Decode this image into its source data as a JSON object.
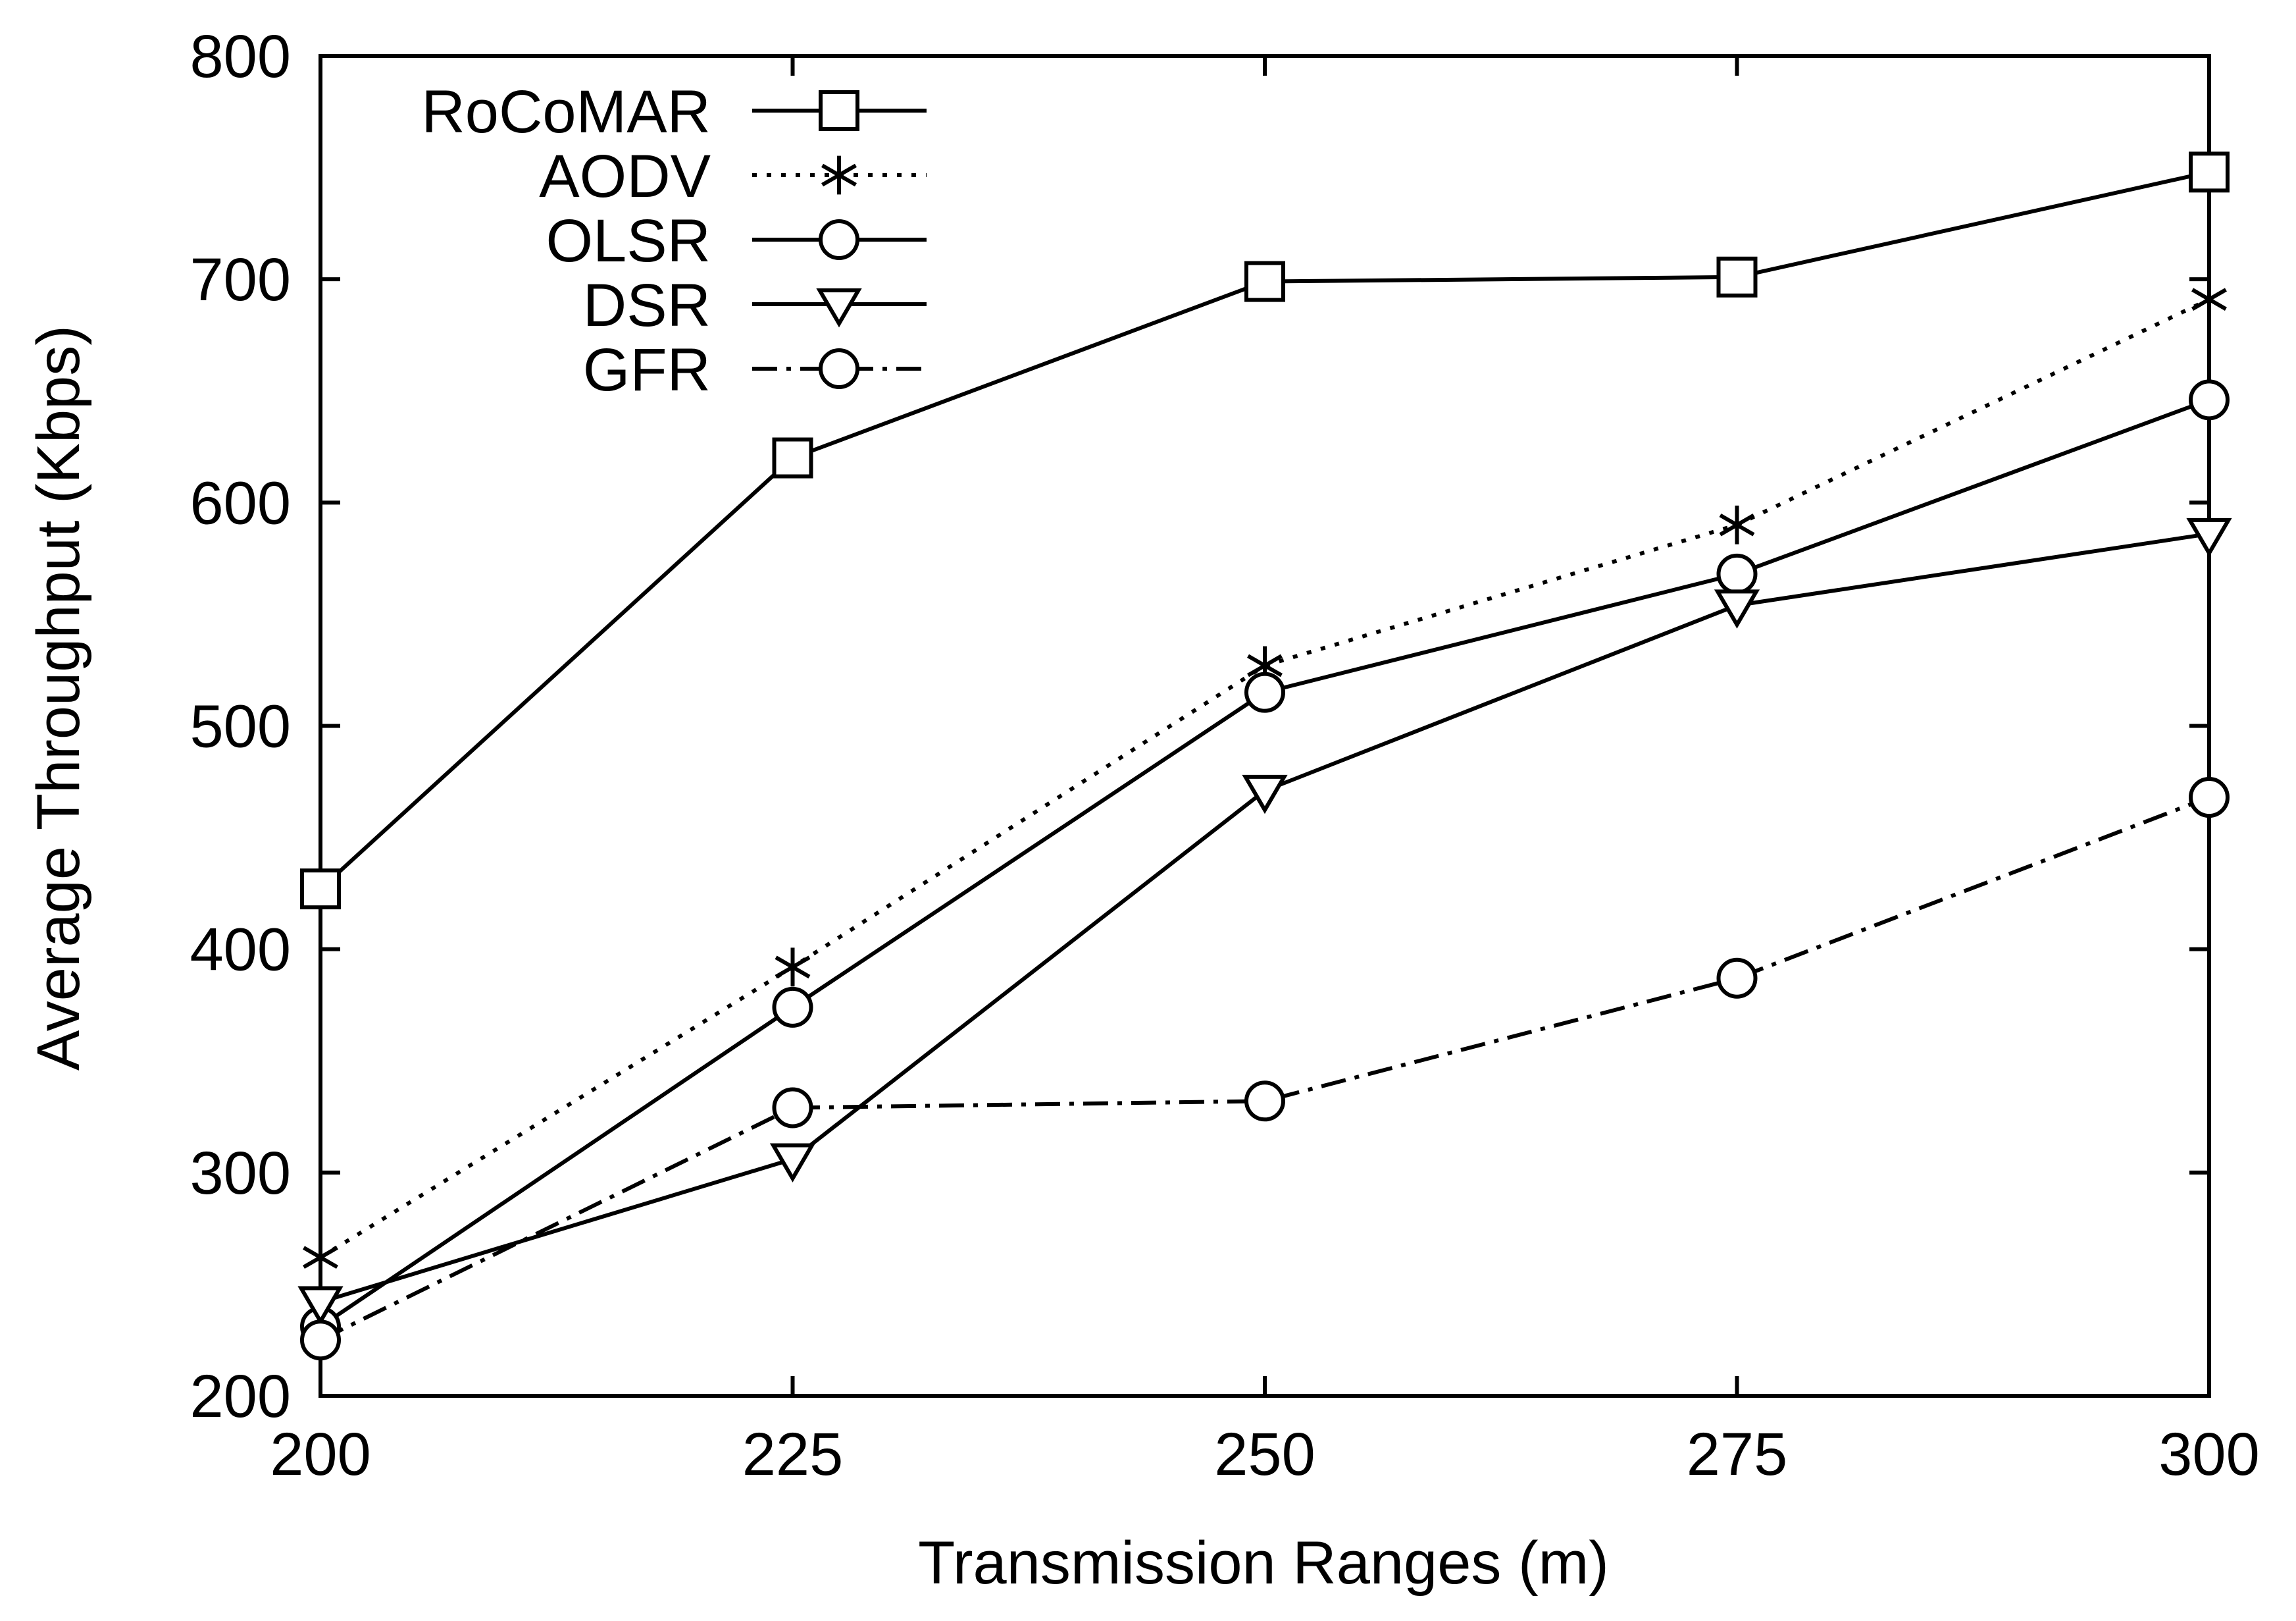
{
  "chart_data": {
    "type": "line",
    "title": "",
    "xlabel": "Transmission Ranges (m)",
    "ylabel": "Average Throughput (Kbps)",
    "x": [
      200,
      225,
      250,
      275,
      300
    ],
    "xlim": [
      200,
      300
    ],
    "ylim": [
      200,
      800
    ],
    "xticks": [
      "200",
      "225",
      "250",
      "275",
      "300"
    ],
    "yticks": [
      "200",
      "300",
      "400",
      "500",
      "600",
      "700",
      "800"
    ],
    "grid": false,
    "legend_position": "top-left",
    "series": [
      {
        "name": "RoCoMAR",
        "marker": "square",
        "dash": "solid",
        "values": [
          427,
          620,
          699,
          701,
          748
        ]
      },
      {
        "name": "AODV",
        "marker": "asterisk",
        "dash": "dotted",
        "values": [
          262,
          392,
          527,
          590,
          691
        ]
      },
      {
        "name": "OLSR",
        "marker": "circle",
        "dash": "solid",
        "values": [
          231,
          374,
          515,
          568,
          646
        ]
      },
      {
        "name": "DSR",
        "marker": "triangle-down",
        "dash": "solid",
        "values": [
          242,
          306,
          471,
          554,
          586
        ]
      },
      {
        "name": "GFR",
        "marker": "circle",
        "dash": "dash-dot",
        "values": [
          225,
          329,
          332,
          387,
          468
        ]
      }
    ]
  }
}
